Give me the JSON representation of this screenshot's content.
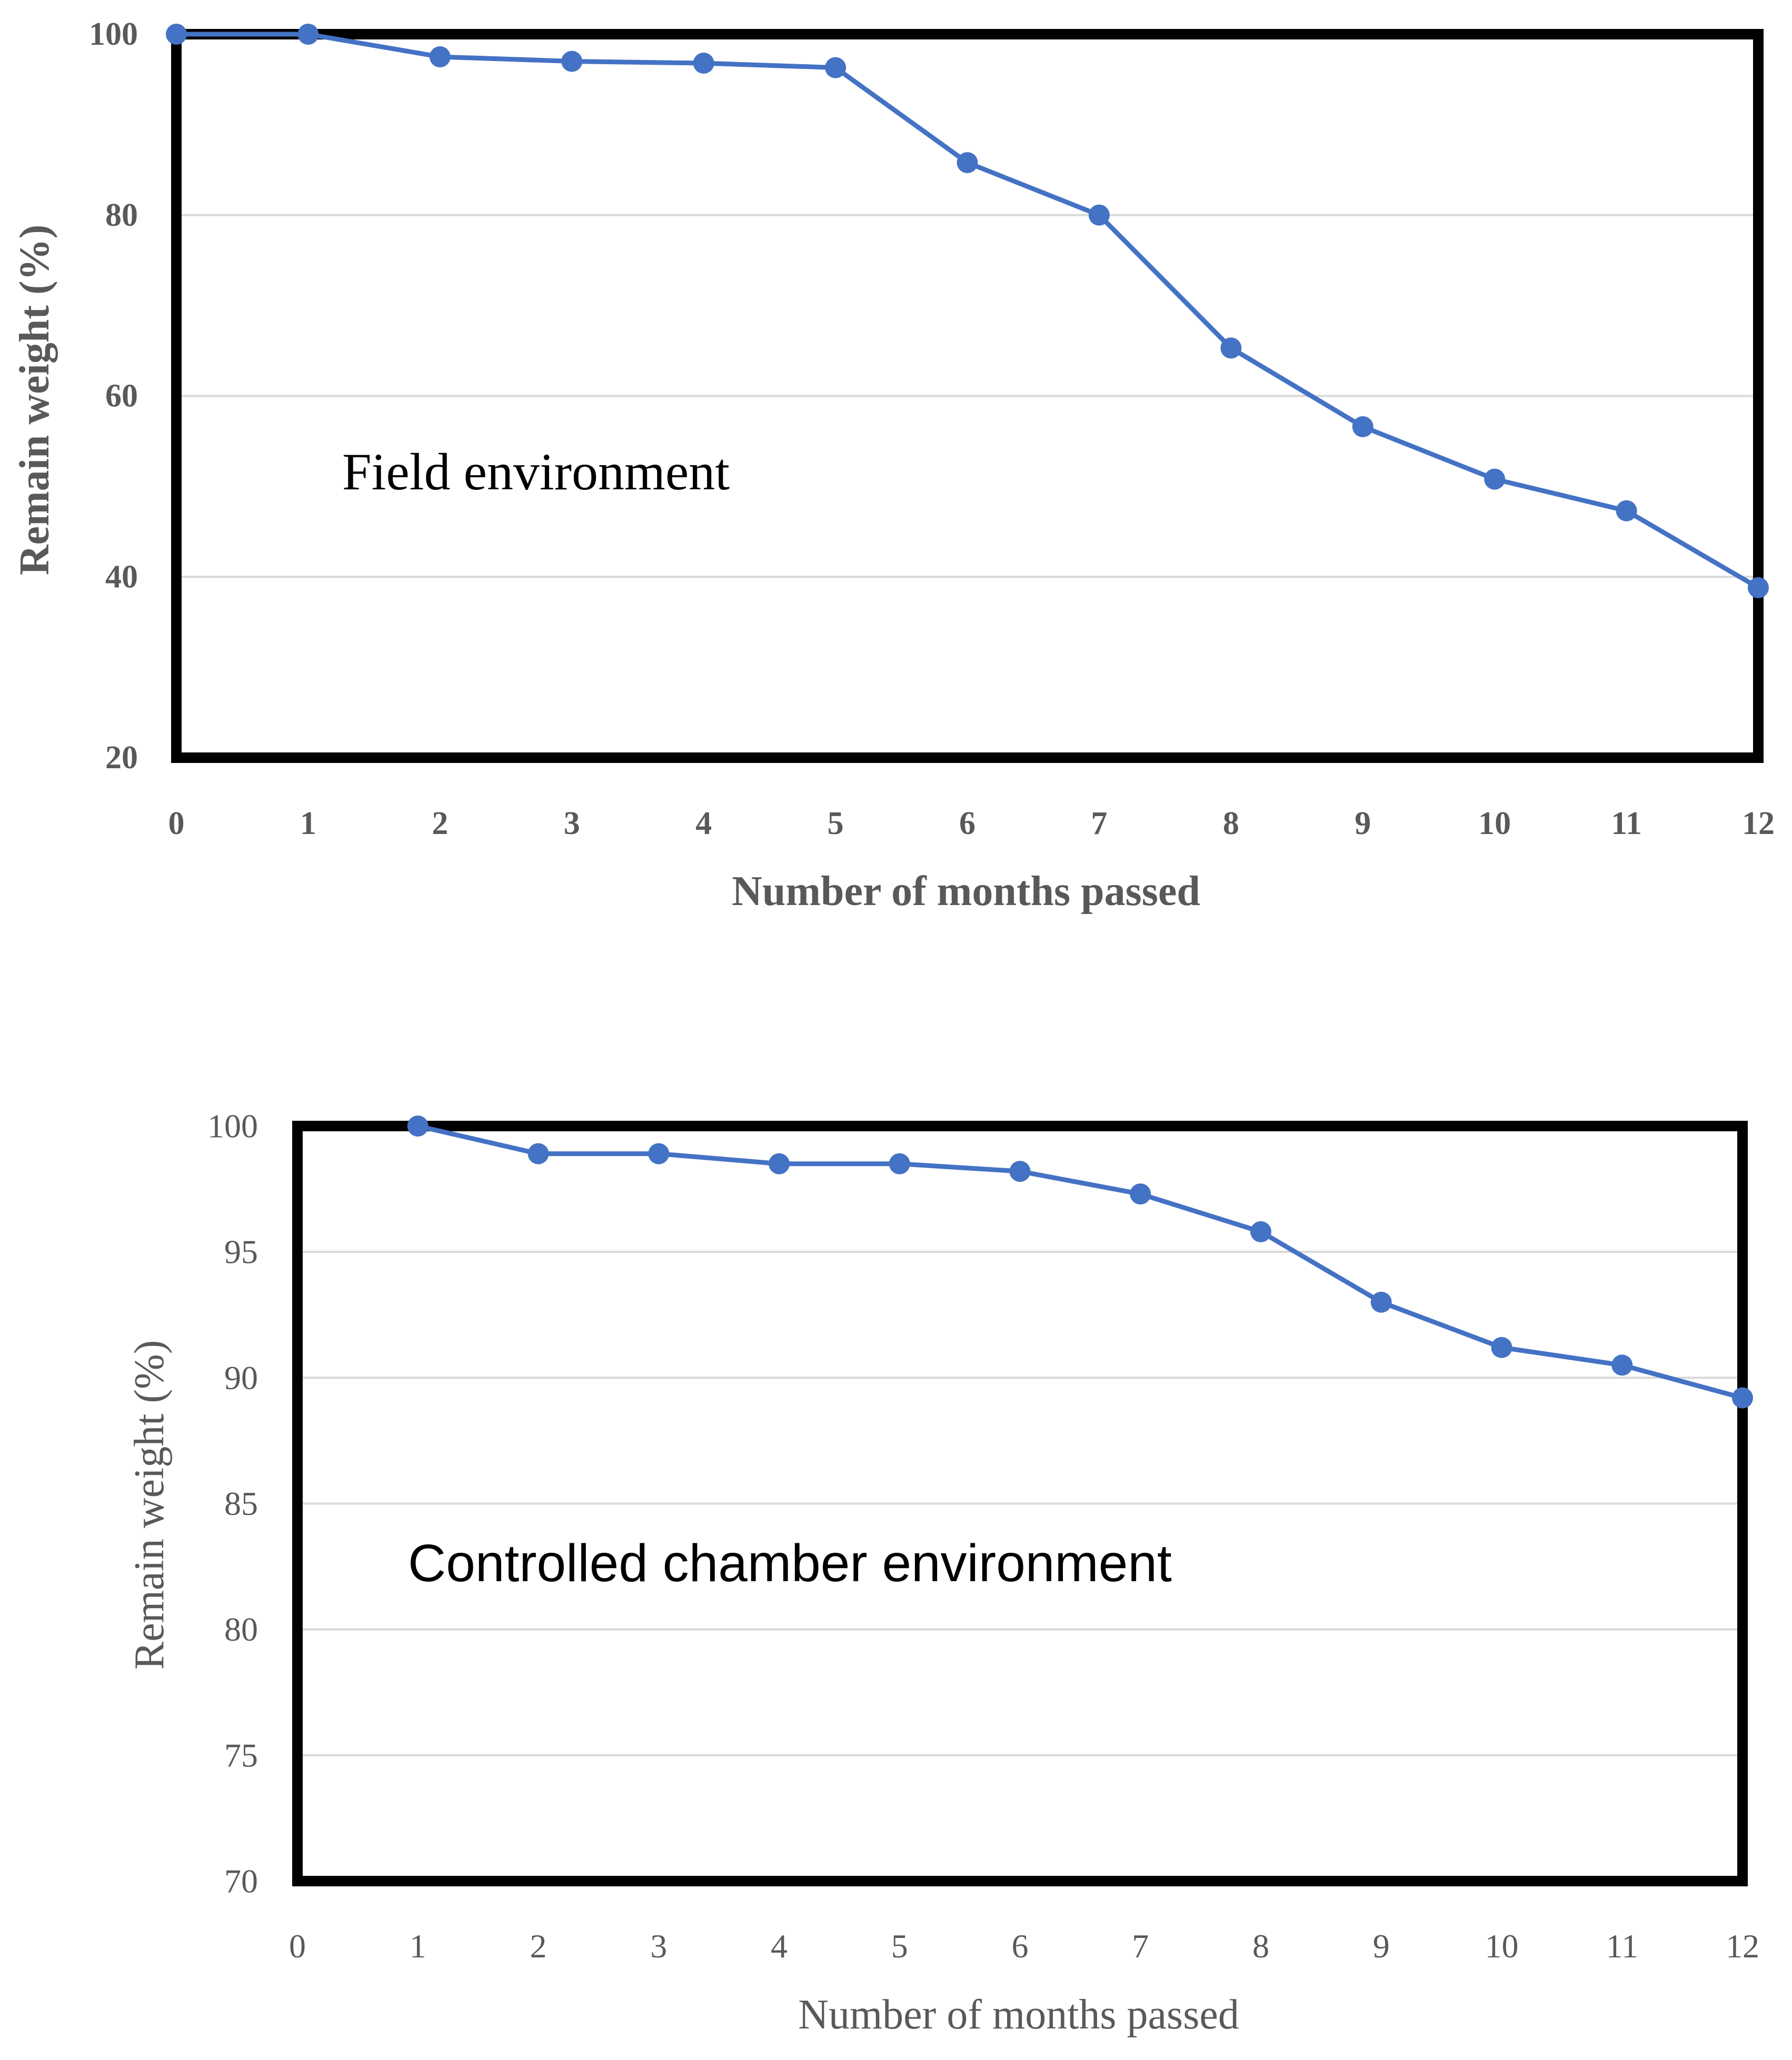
{
  "series_color": "#4472C4",
  "chart_data": [
    {
      "type": "line",
      "title": "",
      "annotation": "Field environment",
      "xlabel": "Number of months passed",
      "ylabel": "Remain weight (%)",
      "x": [
        0,
        1,
        2,
        3,
        4,
        5,
        6,
        7,
        8,
        9,
        10,
        11,
        12
      ],
      "values": [
        100,
        100,
        97.5,
        97,
        96.8,
        96.3,
        85.8,
        80,
        65.3,
        56.6,
        50.8,
        47.3,
        38.8
      ],
      "xlim": [
        0,
        12
      ],
      "ylim": [
        20,
        100
      ],
      "xticks": [
        "0",
        "1",
        "2",
        "3",
        "4",
        "5",
        "6",
        "7",
        "8",
        "9",
        "10",
        "11",
        "12"
      ],
      "yticks": [
        "20",
        "40",
        "60",
        "80",
        "100"
      ],
      "grid": true,
      "legend": "none"
    },
    {
      "type": "line",
      "title": "",
      "annotation": "Controlled chamber environment",
      "xlabel": "Number of months passed",
      "ylabel": "Remain weight (%)",
      "x": [
        1,
        2,
        3,
        4,
        5,
        6,
        7,
        8,
        9,
        10,
        11,
        12
      ],
      "values": [
        100,
        98.9,
        98.9,
        98.5,
        98.5,
        98.2,
        97.3,
        95.8,
        93,
        91.2,
        90.5,
        89.2
      ],
      "xlim": [
        0,
        12
      ],
      "ylim": [
        70,
        100
      ],
      "xticks": [
        "0",
        "1",
        "2",
        "3",
        "4",
        "5",
        "6",
        "7",
        "8",
        "9",
        "10",
        "11",
        "12"
      ],
      "yticks": [
        "70",
        "75",
        "80",
        "85",
        "90",
        "95",
        "100"
      ],
      "grid": true,
      "legend": "none"
    }
  ]
}
